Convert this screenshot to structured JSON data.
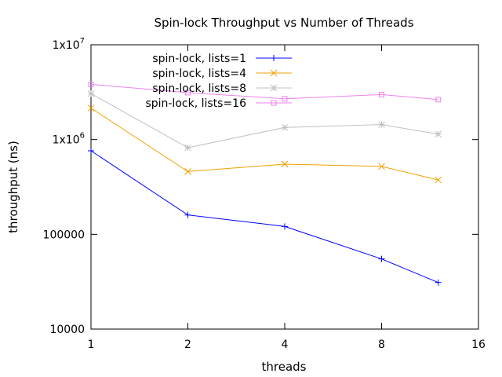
{
  "chart_data": {
    "type": "line",
    "title": "Spin-lock Throughput vs Number of Threads",
    "xlabel": "threads",
    "ylabel": "throughput (ns)",
    "x_scale": "log2",
    "y_scale": "log10",
    "xlim": [
      1,
      16
    ],
    "ylim": [
      10000,
      10000000
    ],
    "x_ticks": [
      {
        "value": 1,
        "label": "1"
      },
      {
        "value": 2,
        "label": "2"
      },
      {
        "value": 4,
        "label": "4"
      },
      {
        "value": 8,
        "label": "8"
      },
      {
        "value": 16,
        "label": "16"
      }
    ],
    "y_ticks": [
      {
        "value": 10000,
        "label": "10000"
      },
      {
        "value": 100000,
        "label": "100000"
      },
      {
        "value": 1000000,
        "label": "1x10",
        "exp": "6"
      },
      {
        "value": 10000000,
        "label": "1x10",
        "exp": "7"
      }
    ],
    "legend_position": "top-left",
    "grid": false,
    "x": [
      1,
      2,
      4,
      8,
      12
    ],
    "series": [
      {
        "name": "spin-lock, lists=1",
        "color": "#0000ff",
        "marker": "plus",
        "values": [
          760000,
          160000,
          121000,
          55000,
          31000
        ]
      },
      {
        "name": "spin-lock, lists=4",
        "color": "#f0a000",
        "marker": "cross",
        "values": [
          2150000,
          460000,
          550000,
          520000,
          375000
        ]
      },
      {
        "name": "spin-lock, lists=8",
        "color": "#c0c0c0",
        "marker": "star",
        "values": [
          3050000,
          820000,
          1340000,
          1440000,
          1140000
        ]
      },
      {
        "name": "spin-lock, lists=16",
        "color": "#ee82ee",
        "marker": "square",
        "values": [
          3820000,
          3130000,
          2690000,
          2980000,
          2640000
        ]
      }
    ]
  }
}
